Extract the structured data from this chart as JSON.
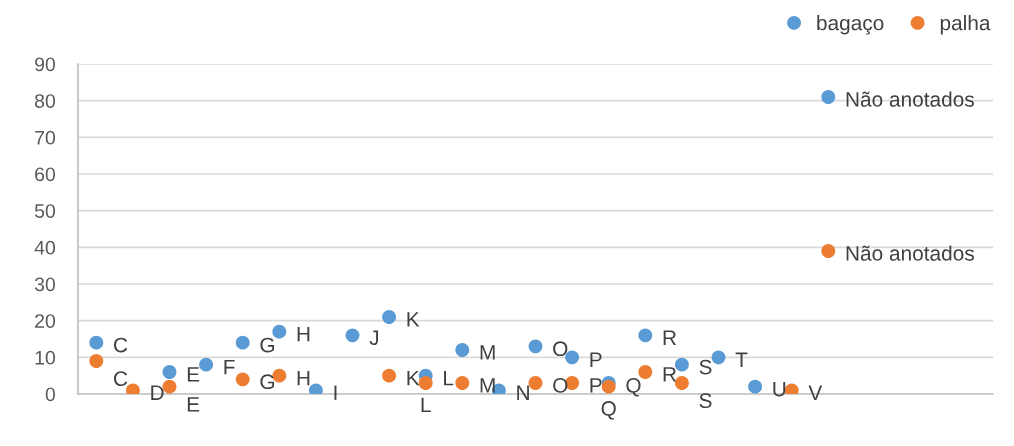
{
  "chart_data": {
    "type": "scatter",
    "categories": [
      null,
      null,
      null,
      null,
      null,
      null,
      null,
      null,
      null,
      null,
      null,
      null,
      null,
      null,
      null,
      null,
      null,
      null,
      null,
      null,
      null,
      null,
      null,
      null,
      null
    ],
    "series": [
      {
        "name": "bagaço",
        "color": "#5b9bd5",
        "values": [
          14,
          null,
          6,
          8,
          14,
          17,
          1,
          16,
          21,
          5,
          12,
          1,
          13,
          10,
          3,
          16,
          8,
          10,
          2,
          null,
          81,
          null,
          null,
          null,
          null
        ],
        "value_labels": [
          "C",
          null,
          "E",
          "F",
          "G",
          "H",
          "I",
          "J",
          "K",
          "L",
          "M",
          "N",
          "O",
          "P",
          "Q",
          "R",
          "S",
          "T",
          "U",
          null,
          "Não anotados",
          null,
          null,
          null,
          null
        ]
      },
      {
        "name": "palha",
        "color": "#ed7d31",
        "values": [
          9,
          1,
          2,
          null,
          4,
          5,
          null,
          null,
          5,
          3,
          3,
          null,
          3,
          3,
          2,
          6,
          3,
          null,
          null,
          1,
          39,
          null,
          null,
          null,
          null
        ],
        "value_labels": [
          "C",
          "D",
          "E",
          null,
          "G",
          "H",
          null,
          null,
          "K",
          "L",
          "M",
          null,
          "O",
          "P",
          "Q",
          "R",
          "S",
          null,
          null,
          "V",
          "Não anotados",
          null,
          null,
          null,
          null
        ]
      }
    ],
    "ylim": [
      0,
      90
    ],
    "yticks": [
      0,
      10,
      20,
      30,
      40,
      50,
      60,
      70,
      80,
      90
    ],
    "grid": "y",
    "legend": "top right",
    "marker": "circle",
    "tick_labels": "y"
  }
}
